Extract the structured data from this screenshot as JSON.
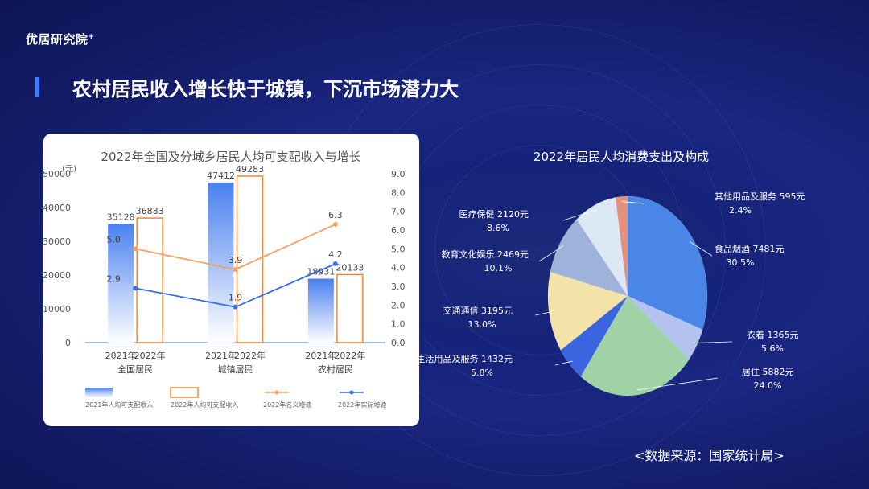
{
  "brand": {
    "name": "优居研究院",
    "mark": "+"
  },
  "title": "农村居民收入增长快于城镇，下沉市场潜力大",
  "source": "<数据来源：国家统计局>",
  "colors": {
    "income2021": "#4a80f0",
    "income2022": "#f0883a",
    "nominal": "#f5a066",
    "real": "#3a6ee8"
  },
  "chart_data": [
    {
      "type": "bar",
      "title": "2022年全国及分城乡居民人均可支配收入与增长",
      "ylabel": "(元)",
      "ylim": [
        0,
        50000
      ],
      "y2lim": [
        0,
        9.0
      ],
      "yticks": [
        "0",
        "10000",
        "20000",
        "30000",
        "40000",
        "50000"
      ],
      "y2ticks": [
        "0.0",
        "1.0",
        "2.0",
        "3.0",
        "4.0",
        "5.0",
        "6.0",
        "7.0",
        "8.0",
        "9.0"
      ],
      "categories": [
        "全国居民",
        "城镇居民",
        "农村居民"
      ],
      "sublabels": [
        "2021年",
        "2022年"
      ],
      "series": [
        {
          "name": "2021年人均可支配收入",
          "kind": "bar",
          "values": [
            35128,
            47412,
            18931
          ]
        },
        {
          "name": "2022年人均可支配收入",
          "kind": "bar",
          "values": [
            36883,
            49283,
            20133
          ]
        },
        {
          "name": "2022年名义增速",
          "kind": "line",
          "axis": "right",
          "values": [
            5.0,
            3.9,
            6.3
          ]
        },
        {
          "name": "2022年实际增速",
          "kind": "line",
          "axis": "right",
          "values": [
            2.9,
            1.9,
            4.2
          ]
        }
      ],
      "legend_position": "bottom"
    },
    {
      "type": "pie",
      "title": "2022年居民人均消费支出及构成",
      "slices": [
        {
          "label": "食品烟酒",
          "value": 7481,
          "pct": "30.5%",
          "color": "#4a86e8"
        },
        {
          "label": "衣着",
          "value": 1365,
          "pct": "5.6%",
          "color": "#b4c2f0"
        },
        {
          "label": "居住",
          "value": 5882,
          "pct": "24.0%",
          "color": "#9fd3a6"
        },
        {
          "label": "生活用品及服务",
          "value": 1432,
          "pct": "5.8%",
          "color": "#3b64e0"
        },
        {
          "label": "交通通信",
          "value": 3195,
          "pct": "13.0%",
          "color": "#f3e3a8"
        },
        {
          "label": "教育文化娱乐",
          "value": 2469,
          "pct": "10.1%",
          "color": "#9fb3da"
        },
        {
          "label": "医疗保健",
          "value": 2120,
          "pct": "8.6%",
          "color": "#dce8f5"
        },
        {
          "label": "其他用品及服务",
          "value": 595,
          "pct": "2.4%",
          "color": "#e4907a"
        }
      ]
    }
  ]
}
